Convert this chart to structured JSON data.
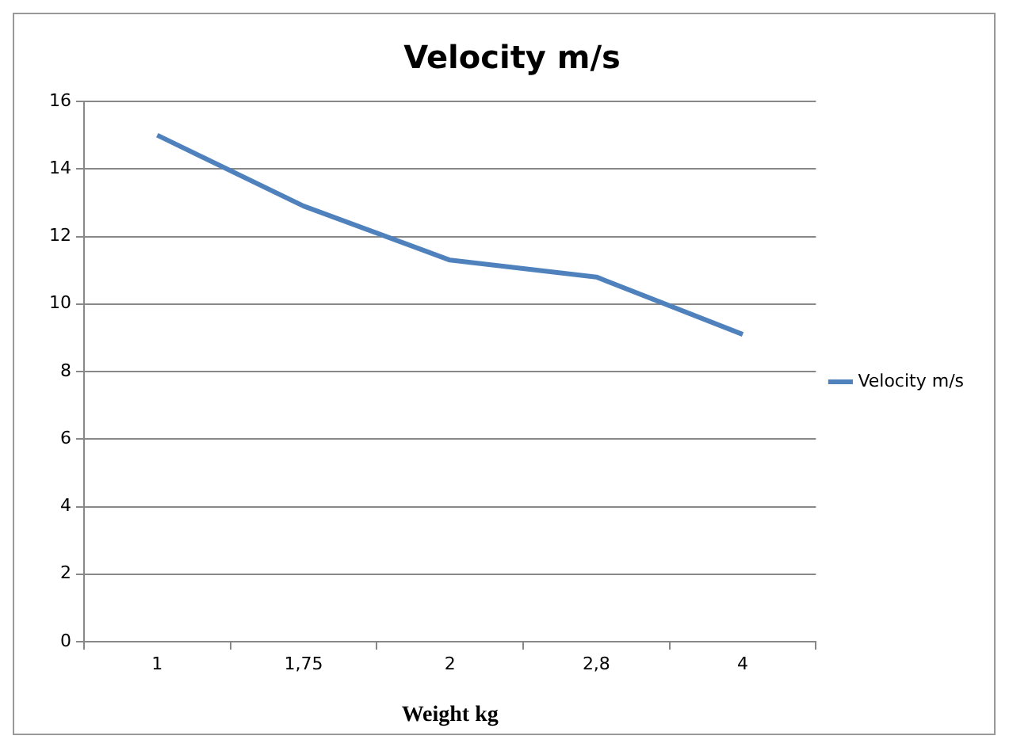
{
  "chart_data": {
    "type": "line",
    "title": "Velocity m/s",
    "xlabel": "Weight kg",
    "categories": [
      "1",
      "1,75",
      "2",
      "2,8",
      "4"
    ],
    "series": [
      {
        "name": "Velocity m/s",
        "color": "#4f81bd",
        "values": [
          15,
          12.9,
          11.3,
          10.8,
          9.1
        ]
      }
    ],
    "ylim": [
      0,
      16
    ],
    "yticks": [
      0,
      2,
      4,
      6,
      8,
      10,
      12,
      14,
      16
    ],
    "grid": "y",
    "legend": "right",
    "marker": "none",
    "line_style": "solid"
  }
}
